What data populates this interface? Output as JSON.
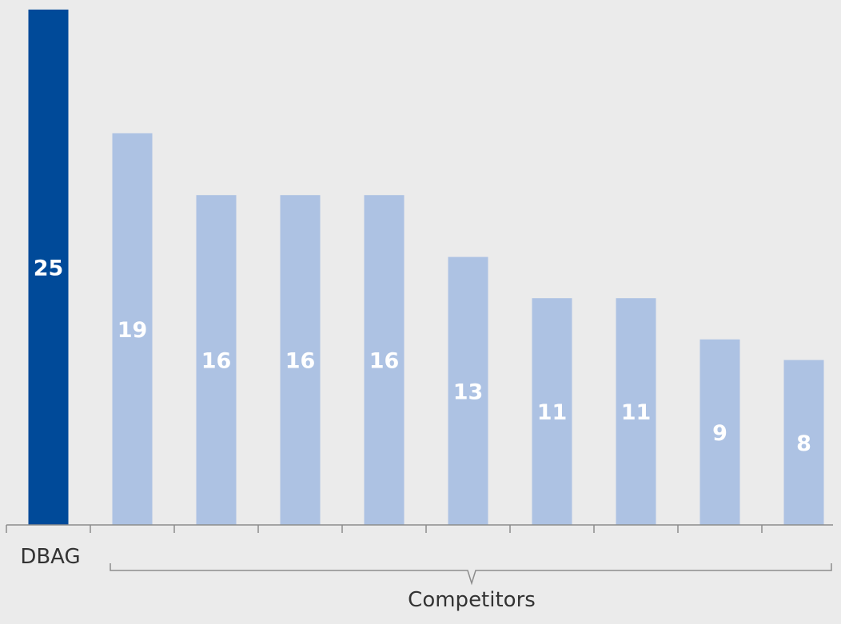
{
  "chart_data": {
    "type": "bar",
    "categories": [
      "DBAG",
      "",
      "",
      "",
      "",
      "",
      "",
      "",
      "",
      ""
    ],
    "values": [
      25,
      19,
      16,
      16,
      16,
      13,
      11,
      11,
      9,
      8
    ],
    "ylim": [
      0,
      25
    ],
    "grid": false,
    "group_labels": {
      "first": "DBAG",
      "rest": "Competitors"
    },
    "colors": {
      "highlight": "#004a99",
      "others": "#adc2e3",
      "background": "#ebebeb",
      "value_text": "#ffffff"
    }
  }
}
